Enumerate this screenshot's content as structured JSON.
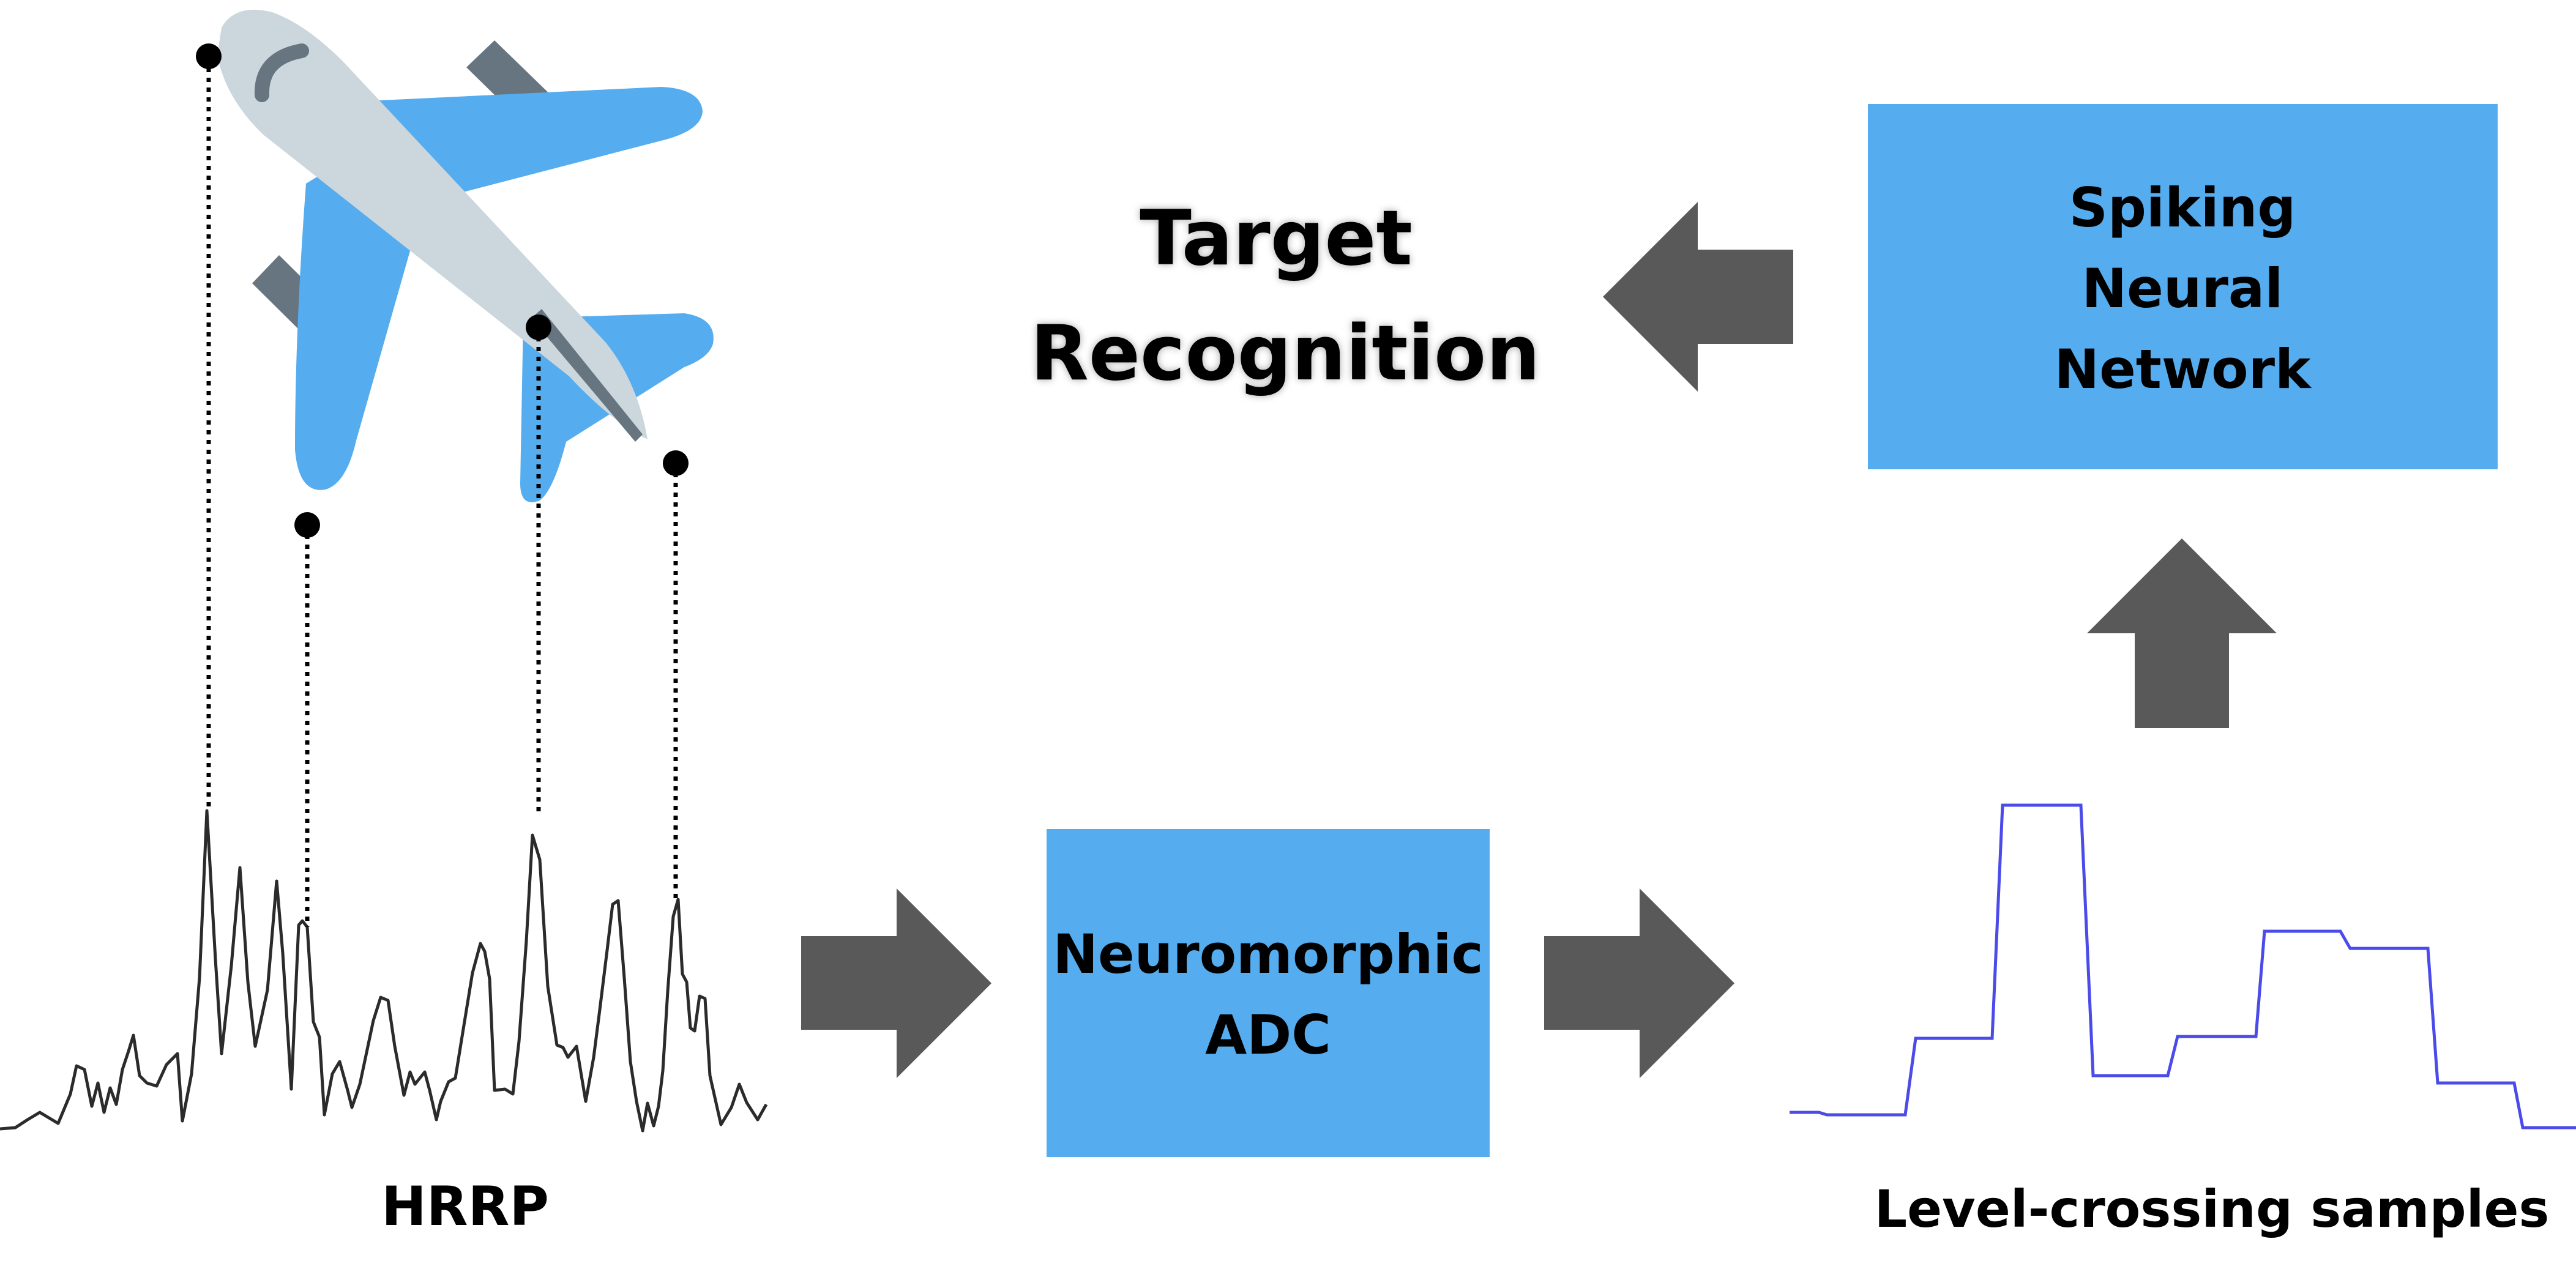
{
  "title": {
    "line1": "Target",
    "line2": "Recognition"
  },
  "snn_box": {
    "line1": "Spiking",
    "line2": "Neural",
    "line3": "Network"
  },
  "adc_box": {
    "line1": "Neuromorphic",
    "line2": "ADC"
  },
  "labels": {
    "hrrp": "HRRP",
    "level_crossing": "Level-crossing samples"
  },
  "colors": {
    "box_fill": "#55acee",
    "arrow_fill": "#595959",
    "hrrp_line": "#2b2b2b",
    "samples_line": "#4b4bea",
    "aircraft_body": "#ccd6dd",
    "aircraft_wing": "#55acee",
    "aircraft_dark": "#66757f",
    "marker": "#000000"
  },
  "icons": {
    "aircraft": "airplane-icon",
    "arrow_right": "arrow-right-icon",
    "arrow_left": "arrow-left-icon",
    "arrow_up": "arrow-up-icon"
  }
}
